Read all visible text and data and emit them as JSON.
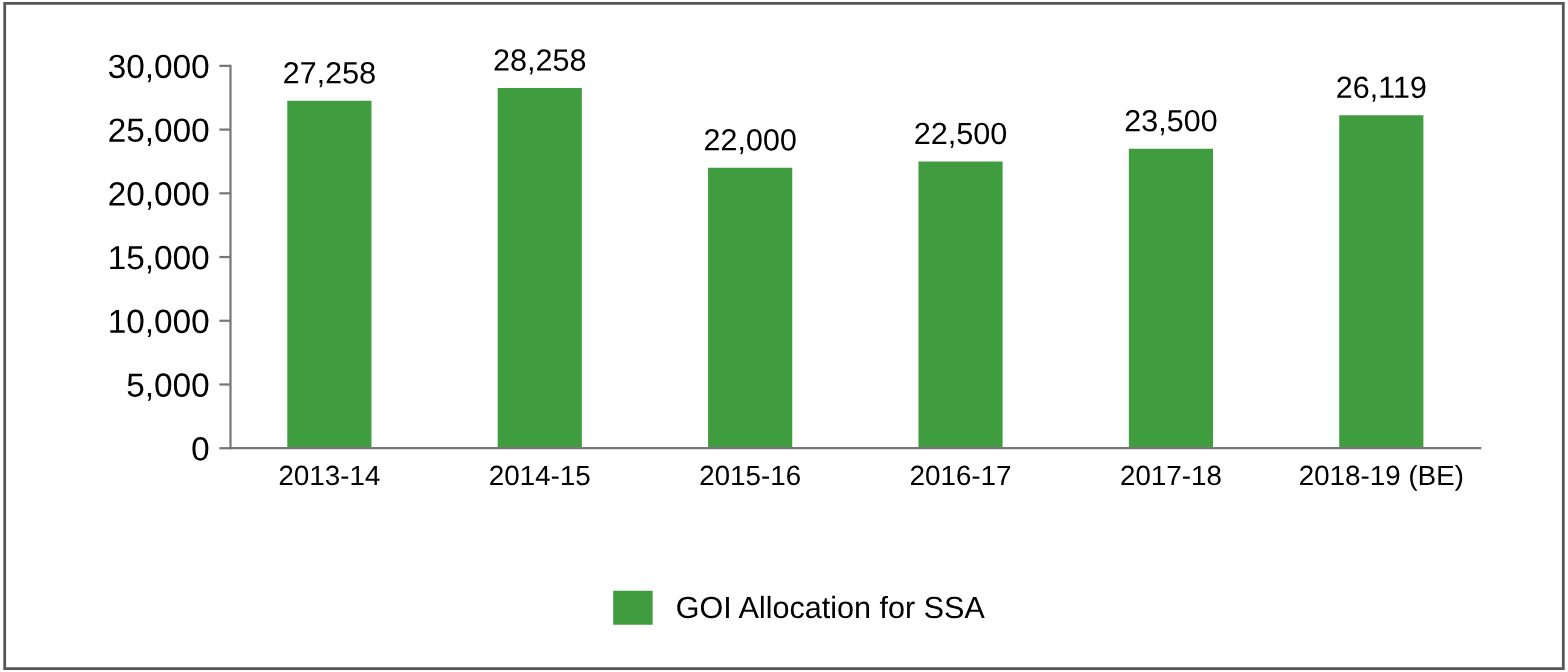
{
  "chart_data": {
    "type": "bar",
    "categories": [
      "2013-14",
      "2014-15",
      "2015-16",
      "2016-17",
      "2017-18",
      "2018-19 (BE)"
    ],
    "series": [
      {
        "name": "GOI Allocation for SSA",
        "color": "#3f9c3f",
        "values": [
          27258,
          28258,
          22000,
          22500,
          23500,
          26119
        ],
        "value_labels": [
          "27,258",
          "28,258",
          "22,000",
          "22,500",
          "23,500",
          "26,119"
        ]
      }
    ],
    "ylim": [
      0,
      30000
    ],
    "yticks": [
      {
        "value": 0,
        "label": "0"
      },
      {
        "value": 5000,
        "label": "5,000"
      },
      {
        "value": 10000,
        "label": "10,000"
      },
      {
        "value": 15000,
        "label": "15,000"
      },
      {
        "value": 20000,
        "label": "20,000"
      },
      {
        "value": 25000,
        "label": "25,000"
      },
      {
        "value": 30000,
        "label": "30,000"
      }
    ],
    "grid": false,
    "legend": "bottom"
  }
}
